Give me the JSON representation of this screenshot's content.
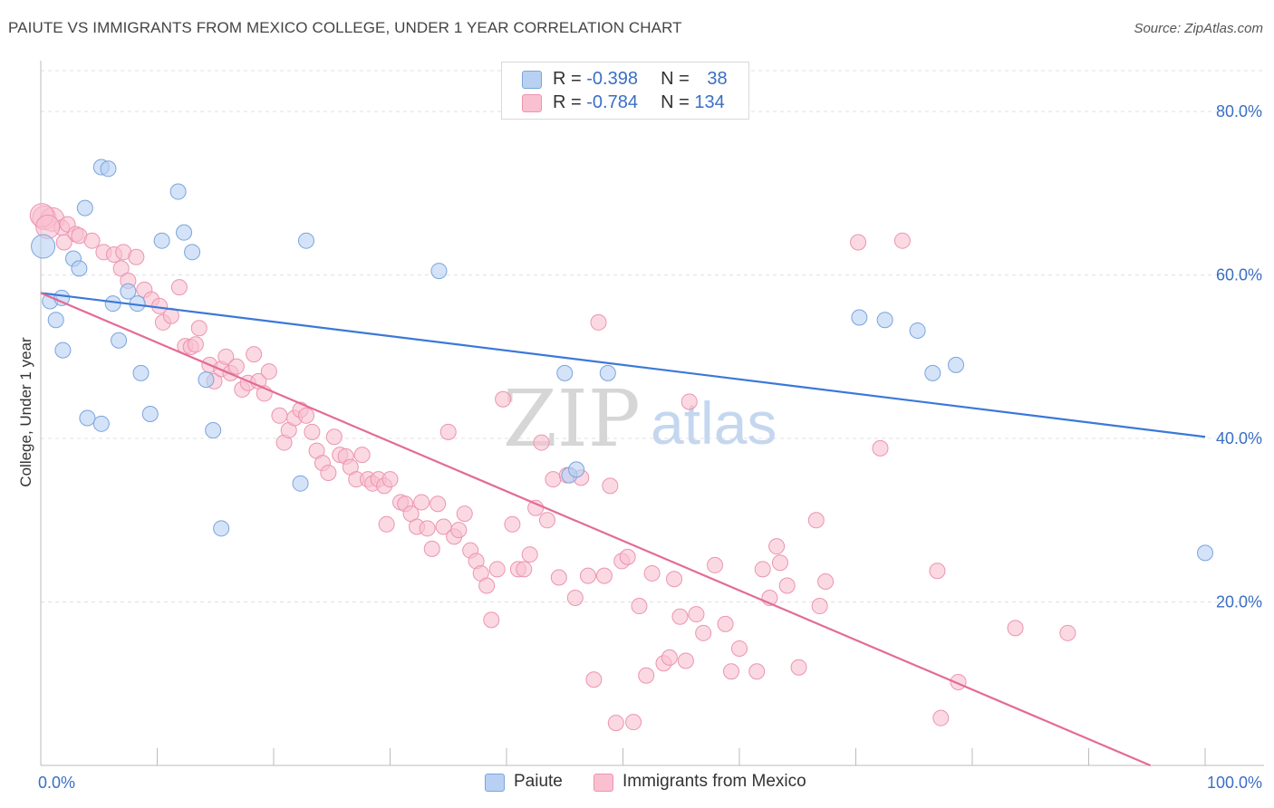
{
  "header": {
    "title": "PAIUTE VS IMMIGRANTS FROM MEXICO COLLEGE, UNDER 1 YEAR CORRELATION CHART",
    "source": "Source: ZipAtlas.com"
  },
  "watermark": {
    "zip": "ZIP",
    "atlas": "atlas"
  },
  "legend": {
    "rows": [
      {
        "r_label": "R = ",
        "r_value": "-0.398",
        "n_label": "N = ",
        "n_value": "38",
        "color": "#b8d1f3"
      },
      {
        "r_label": "R = ",
        "r_value": "-0.784",
        "n_label": "N = ",
        "n_value": "134",
        "color": "#f9c0d1"
      }
    ]
  },
  "bottom_legend": [
    {
      "label": "Paiute",
      "color": "#b8d1f3"
    },
    {
      "label": "Immigrants from Mexico",
      "color": "#f9c0d1"
    }
  ],
  "colors": {
    "paiute_fill": "#b8d1f3",
    "paiute_stroke": "#7aa4dd",
    "paiute_line": "#3b78d8",
    "mexico_fill": "#f9c0d1",
    "mexico_stroke": "#ec94b0",
    "mexico_line": "#e46b96",
    "tick_text": "#3a6fc4",
    "grid": "#e0e0e0"
  },
  "chart_data": {
    "type": "scatter",
    "title": "PAIUTE VS IMMIGRANTS FROM MEXICO COLLEGE, UNDER 1 YEAR CORRELATION CHART",
    "xlabel": "",
    "ylabel": "College, Under 1 year",
    "xlim": [
      0,
      100
    ],
    "ylim": [
      0,
      85
    ],
    "x_tick_labels": [
      "0.0%",
      "100.0%"
    ],
    "y_ticks": [
      20,
      40,
      60,
      80
    ],
    "y_tick_labels": [
      "20.0%",
      "40.0%",
      "60.0%",
      "80.0%"
    ],
    "grid": true,
    "legend_position": "top-center",
    "series": [
      {
        "name": "Paiute",
        "R": -0.398,
        "N": 38,
        "trend": {
          "x": [
            0,
            100
          ],
          "y": [
            57.8,
            40.2
          ]
        },
        "points": [
          [
            0.2,
            63.5
          ],
          [
            0.8,
            56.8
          ],
          [
            1.3,
            54.5
          ],
          [
            1.8,
            57.2
          ],
          [
            1.9,
            50.8
          ],
          [
            2.8,
            62.0
          ],
          [
            3.3,
            60.8
          ],
          [
            3.8,
            68.2
          ],
          [
            4.0,
            42.5
          ],
          [
            5.2,
            41.8
          ],
          [
            5.2,
            73.2
          ],
          [
            5.8,
            73.0
          ],
          [
            6.2,
            56.5
          ],
          [
            6.7,
            52.0
          ],
          [
            7.5,
            58.0
          ],
          [
            8.3,
            56.5
          ],
          [
            8.6,
            48.0
          ],
          [
            9.4,
            43.0
          ],
          [
            10.4,
            64.2
          ],
          [
            11.8,
            70.2
          ],
          [
            12.3,
            65.2
          ],
          [
            13.0,
            62.8
          ],
          [
            14.2,
            47.2
          ],
          [
            14.8,
            41.0
          ],
          [
            15.5,
            29.0
          ],
          [
            22.3,
            34.5
          ],
          [
            22.8,
            64.2
          ],
          [
            34.2,
            60.5
          ],
          [
            45.0,
            48.0
          ],
          [
            45.4,
            35.5
          ],
          [
            46.0,
            36.2
          ],
          [
            48.7,
            48.0
          ],
          [
            70.3,
            54.8
          ],
          [
            72.5,
            54.5
          ],
          [
            75.3,
            53.2
          ],
          [
            76.6,
            48.0
          ],
          [
            78.6,
            49.0
          ],
          [
            100.0,
            26.0
          ]
        ]
      },
      {
        "name": "Immigrants from Mexico",
        "R": -0.784,
        "N": 134,
        "trend": {
          "x": [
            0,
            95.3
          ],
          "y": [
            57.8,
            0.0
          ]
        },
        "points": [
          [
            0.3,
            67.0
          ],
          [
            1.0,
            66.8
          ],
          [
            1.8,
            65.8
          ],
          [
            2.3,
            66.2
          ],
          [
            3.0,
            65.0
          ],
          [
            3.3,
            64.8
          ],
          [
            4.4,
            64.2
          ],
          [
            5.4,
            62.8
          ],
          [
            6.3,
            62.5
          ],
          [
            7.1,
            62.8
          ],
          [
            6.9,
            60.8
          ],
          [
            7.5,
            59.3
          ],
          [
            8.2,
            62.2
          ],
          [
            8.9,
            58.2
          ],
          [
            9.5,
            57.0
          ],
          [
            10.2,
            56.2
          ],
          [
            10.5,
            54.2
          ],
          [
            11.2,
            55.0
          ],
          [
            11.9,
            58.5
          ],
          [
            12.4,
            51.3
          ],
          [
            12.9,
            51.2
          ],
          [
            13.3,
            51.5
          ],
          [
            13.6,
            53.5
          ],
          [
            14.5,
            49.0
          ],
          [
            14.9,
            47.0
          ],
          [
            15.5,
            48.5
          ],
          [
            15.9,
            50.0
          ],
          [
            16.3,
            48.0
          ],
          [
            16.8,
            48.8
          ],
          [
            17.3,
            46.0
          ],
          [
            17.8,
            46.8
          ],
          [
            18.3,
            50.3
          ],
          [
            18.7,
            47.0
          ],
          [
            19.2,
            45.5
          ],
          [
            19.6,
            48.2
          ],
          [
            20.5,
            42.8
          ],
          [
            20.9,
            39.5
          ],
          [
            21.3,
            41.0
          ],
          [
            21.8,
            42.5
          ],
          [
            22.3,
            43.5
          ],
          [
            22.8,
            42.8
          ],
          [
            23.3,
            40.8
          ],
          [
            23.7,
            38.5
          ],
          [
            24.2,
            37.0
          ],
          [
            24.7,
            35.8
          ],
          [
            25.2,
            40.2
          ],
          [
            25.7,
            38.0
          ],
          [
            26.2,
            37.8
          ],
          [
            26.6,
            36.5
          ],
          [
            27.1,
            35.0
          ],
          [
            27.6,
            38.0
          ],
          [
            28.1,
            35.0
          ],
          [
            28.5,
            34.5
          ],
          [
            29.0,
            35.0
          ],
          [
            29.5,
            34.2
          ],
          [
            29.7,
            29.5
          ],
          [
            30.0,
            35.0
          ],
          [
            30.9,
            32.2
          ],
          [
            31.3,
            32.0
          ],
          [
            31.8,
            30.8
          ],
          [
            32.3,
            29.2
          ],
          [
            32.7,
            32.2
          ],
          [
            33.2,
            29.0
          ],
          [
            33.6,
            26.5
          ],
          [
            34.1,
            32.0
          ],
          [
            34.6,
            29.2
          ],
          [
            35.0,
            40.8
          ],
          [
            35.5,
            28.0
          ],
          [
            35.9,
            28.8
          ],
          [
            36.4,
            30.8
          ],
          [
            36.9,
            26.3
          ],
          [
            37.4,
            25.0
          ],
          [
            37.8,
            23.5
          ],
          [
            38.3,
            22.0
          ],
          [
            38.7,
            17.8
          ],
          [
            39.2,
            24.0
          ],
          [
            39.7,
            44.8
          ],
          [
            40.5,
            29.5
          ],
          [
            41.0,
            24.0
          ],
          [
            41.5,
            24.0
          ],
          [
            42.0,
            25.8
          ],
          [
            42.5,
            31.5
          ],
          [
            43.0,
            39.5
          ],
          [
            43.5,
            30.0
          ],
          [
            44.0,
            35.0
          ],
          [
            44.5,
            23.0
          ],
          [
            45.2,
            35.5
          ],
          [
            45.9,
            20.5
          ],
          [
            46.4,
            35.2
          ],
          [
            47.0,
            23.2
          ],
          [
            47.5,
            10.5
          ],
          [
            47.9,
            54.2
          ],
          [
            48.4,
            23.2
          ],
          [
            48.9,
            34.2
          ],
          [
            49.4,
            5.2
          ],
          [
            49.9,
            25.0
          ],
          [
            50.4,
            25.5
          ],
          [
            50.9,
            5.3
          ],
          [
            51.4,
            19.5
          ],
          [
            52.0,
            11.0
          ],
          [
            52.5,
            23.5
          ],
          [
            53.5,
            12.5
          ],
          [
            54.0,
            13.2
          ],
          [
            54.4,
            22.8
          ],
          [
            54.9,
            18.2
          ],
          [
            55.4,
            12.8
          ],
          [
            55.7,
            44.5
          ],
          [
            56.3,
            18.5
          ],
          [
            56.9,
            16.2
          ],
          [
            57.9,
            24.5
          ],
          [
            58.8,
            17.3
          ],
          [
            59.3,
            11.5
          ],
          [
            60.0,
            14.3
          ],
          [
            61.5,
            11.5
          ],
          [
            62.0,
            24.0
          ],
          [
            62.6,
            20.5
          ],
          [
            63.2,
            26.8
          ],
          [
            63.5,
            24.8
          ],
          [
            64.1,
            22.0
          ],
          [
            65.1,
            12.0
          ],
          [
            66.6,
            30.0
          ],
          [
            66.9,
            19.5
          ],
          [
            67.4,
            22.5
          ],
          [
            70.2,
            64.0
          ],
          [
            72.1,
            38.8
          ],
          [
            74.0,
            64.2
          ],
          [
            77.0,
            23.8
          ],
          [
            77.3,
            5.8
          ],
          [
            78.8,
            10.2
          ],
          [
            83.7,
            16.8
          ],
          [
            88.2,
            16.2
          ],
          [
            0.1,
            67.3
          ],
          [
            0.6,
            65.9
          ],
          [
            2.0,
            64.0
          ]
        ]
      }
    ]
  }
}
